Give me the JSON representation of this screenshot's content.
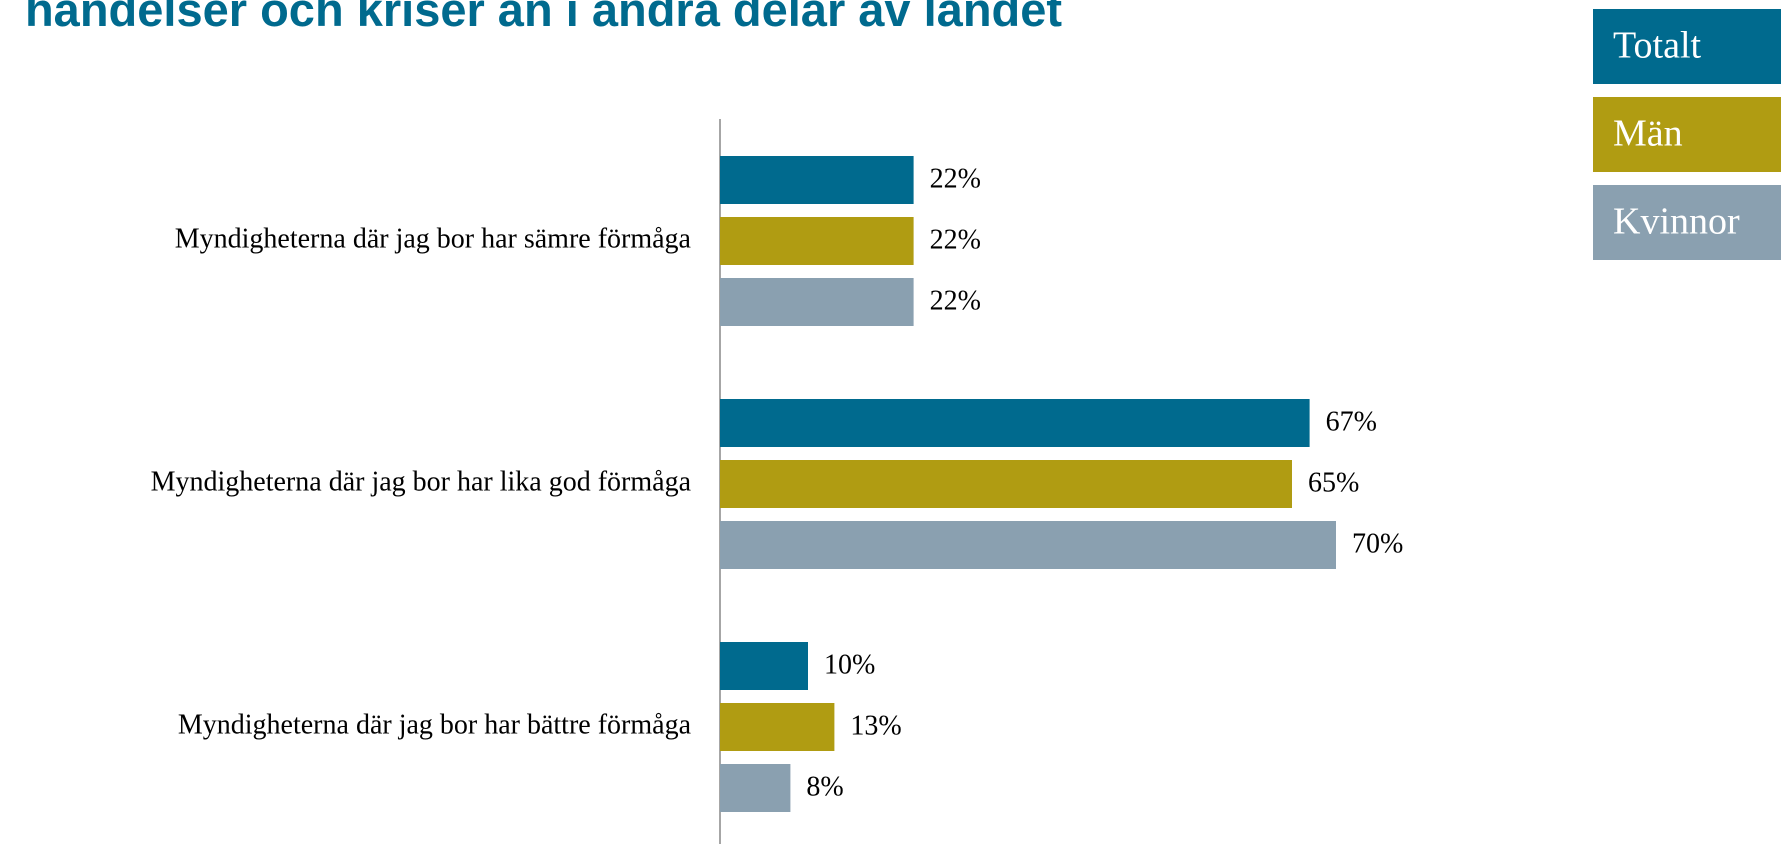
{
  "chart_data": {
    "type": "bar",
    "orientation": "horizontal",
    "title": "händelser och kriser än i andra delar av landet",
    "categories": [
      "Myndigheterna där jag bor har sämre förmåga",
      "Myndigheterna där jag bor har lika god förmåga",
      "Myndigheterna där jag bor har bättre förmåga"
    ],
    "series": [
      {
        "name": "Totalt",
        "color": "#006a8e",
        "values": [
          22,
          67,
          10
        ],
        "value_labels": [
          "22%",
          "67%",
          "10%"
        ]
      },
      {
        "name": "Män",
        "color": "#b09c12",
        "values": [
          22,
          65,
          13
        ],
        "value_labels": [
          "22%",
          "65%",
          "13%"
        ]
      },
      {
        "name": "Kvinnor",
        "color": "#8aa0b0",
        "values": [
          22,
          70,
          8
        ],
        "value_labels": [
          "22%",
          "70%",
          "8%"
        ]
      }
    ],
    "xlim": [
      0,
      100
    ],
    "legend": "top-right"
  }
}
